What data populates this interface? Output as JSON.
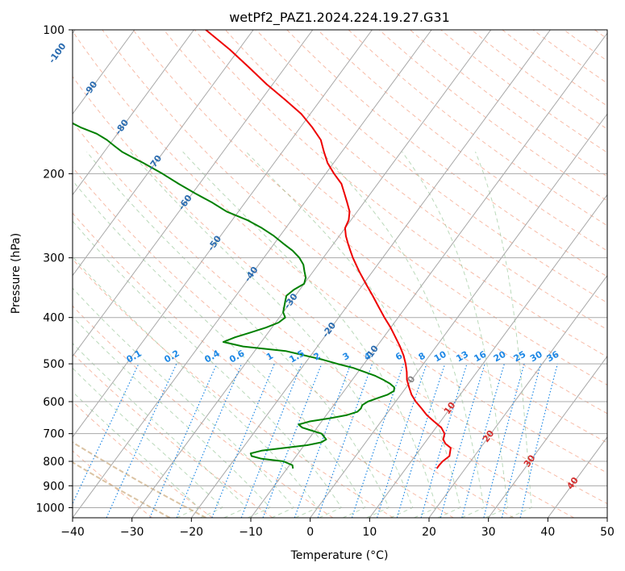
{
  "chart_data": {
    "type": "line",
    "subtype": "skew-t log-p diagram",
    "title": "wetPf2_PAZ1.2024.224.19.27.G31",
    "xlabel": "Temperature (°C)",
    "ylabel": "Pressure (hPa)",
    "xlim": [
      -40,
      50
    ],
    "ylim": [
      1050,
      100
    ],
    "yscale": "log",
    "grid": true,
    "x_ticks": [
      -40,
      -30,
      -20,
      -10,
      0,
      10,
      20,
      30,
      40,
      50
    ],
    "x_tick_labels": [
      "−40",
      "−30",
      "−20",
      "−10",
      "0",
      "10",
      "20",
      "30",
      "40",
      "50"
    ],
    "y_ticks": [
      1000,
      900,
      800,
      700,
      600,
      500,
      400,
      300,
      200,
      100
    ],
    "y_tick_labels": [
      "1000",
      "900",
      "800",
      "700",
      "600",
      "500",
      "400",
      "300",
      "200",
      "100"
    ],
    "isotherm_labels_blue": [
      "-100",
      "-90",
      "-80",
      "-70",
      "-60",
      "-50",
      "-40",
      "-30",
      "-20",
      "-10"
    ],
    "isotherm_labels_blue_values": [
      -100,
      -90,
      -80,
      -70,
      -60,
      -50,
      -40,
      -30,
      -20,
      -10
    ],
    "isotherm_labels_gray": [
      "0"
    ],
    "isotherm_labels_red": [
      "10",
      "20",
      "30",
      "40"
    ],
    "isotherm_labels_red_values": [
      10,
      20,
      30,
      40
    ],
    "mixing_ratio_labels": [
      "0.1",
      "0.2",
      "0.4",
      "0.6",
      "1",
      "1.5",
      "2",
      "3",
      "4",
      "6",
      "8",
      "10",
      "13",
      "16",
      "20",
      "25",
      "30",
      "36"
    ],
    "mixing_ratio_values": [
      0.1,
      0.2,
      0.4,
      0.6,
      1,
      1.5,
      2,
      3,
      4,
      6,
      8,
      10,
      13,
      16,
      20,
      25,
      30,
      36
    ],
    "series": [
      {
        "color": "#ee0000",
        "pressure": [
          828,
          815,
          800,
          780,
          750,
          735,
          720,
          700,
          680,
          660,
          640,
          620,
          600,
          580,
          560,
          540,
          520,
          500,
          480,
          460,
          440,
          420,
          400,
          380,
          360,
          340,
          320,
          300,
          290,
          280,
          270,
          260,
          250,
          240,
          230,
          220,
          210,
          200,
          190,
          180,
          170,
          160,
          150,
          140,
          130,
          120,
          110,
          100
        ],
        "temperature": [
          15.2,
          15.2,
          15.3,
          15.8,
          15.0,
          13.6,
          12.7,
          12.2,
          10.9,
          8.9,
          6.9,
          5.2,
          3.4,
          1.8,
          0.5,
          -0.8,
          -1.8,
          -3.0,
          -4.4,
          -6.1,
          -8.0,
          -10.0,
          -12.3,
          -14.6,
          -17.0,
          -19.6,
          -22.3,
          -25.0,
          -26.3,
          -27.6,
          -28.9,
          -30.0,
          -30.4,
          -31.3,
          -32.8,
          -34.4,
          -36.1,
          -38.6,
          -41.0,
          -43.0,
          -45.0,
          -48.0,
          -51.5,
          -56.0,
          -61.0,
          -66.0,
          -71.5,
          -78.0
        ]
      },
      {
        "color": "#008000",
        "pressure": [
          828,
          815,
          800,
          790,
          780,
          770,
          760,
          750,
          740,
          730,
          720,
          700,
          690,
          680,
          670,
          660,
          650,
          640,
          630,
          620,
          610,
          600,
          590,
          580,
          570,
          560,
          550,
          540,
          530,
          520,
          510,
          500,
          490,
          470,
          460,
          450,
          440,
          430,
          420,
          410,
          400,
          390,
          380,
          370,
          360,
          350,
          340,
          330,
          320,
          310,
          300,
          290,
          280,
          270,
          260,
          250,
          240,
          230,
          220,
          210,
          200,
          190,
          185,
          180,
          175,
          170,
          165,
          160,
          155,
          150,
          145,
          140,
          135,
          130,
          125,
          120,
          115,
          110,
          100
        ],
        "temperature": [
          -9.0,
          -9.5,
          -11.5,
          -15.5,
          -17.5,
          -18.0,
          -16.5,
          -13.0,
          -9.5,
          -7.5,
          -7.0,
          -8.5,
          -10.5,
          -12.5,
          -13.5,
          -12.0,
          -9.0,
          -6.5,
          -5.2,
          -5.0,
          -5.2,
          -4.7,
          -3.5,
          -2.2,
          -1.6,
          -2.0,
          -3.2,
          -4.8,
          -6.6,
          -8.9,
          -11.3,
          -14.5,
          -17.5,
          -24.8,
          -32.5,
          -36.4,
          -35.0,
          -33.0,
          -31.0,
          -29.5,
          -29.0,
          -30.0,
          -30.5,
          -31.0,
          -31.5,
          -31.0,
          -30.0,
          -30.5,
          -31.5,
          -32.5,
          -34.0,
          -36.0,
          -38.5,
          -41.0,
          -44.0,
          -47.5,
          -52.0,
          -55.5,
          -59.5,
          -63.5,
          -67.5,
          -72.0,
          -74.5,
          -77.0,
          -79.0,
          -81.0,
          -83.5,
          -87.0,
          -90.0,
          -92.0,
          -94.0,
          -96.0,
          -99.0,
          -102.5,
          -106.0,
          -110.0,
          -114.0,
          -118.0,
          -126.0
        ]
      }
    ]
  }
}
